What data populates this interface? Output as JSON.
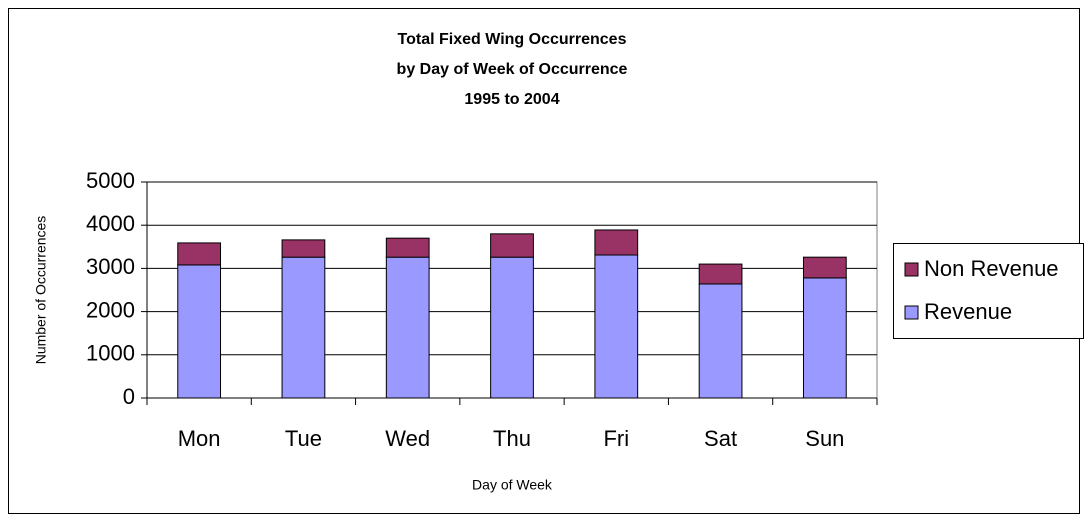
{
  "chart_data": {
    "type": "stacked_bar",
    "title": [
      "Total Fixed Wing Occurrences",
      "by Day of Week of Occurrence",
      "1995 to 2004"
    ],
    "x_label": "Day of Week",
    "y_label": "Number of Occurrences",
    "categories": [
      "Mon",
      "Tue",
      "Wed",
      "Thu",
      "Fri",
      "Sat",
      "Sun"
    ],
    "series": [
      {
        "name": "Revenue",
        "color": "#9999ff",
        "values": [
          3080,
          3260,
          3260,
          3260,
          3310,
          2640,
          2780
        ]
      },
      {
        "name": "Non Revenue",
        "color": "#993366",
        "values": [
          510,
          400,
          440,
          540,
          580,
          460,
          480
        ]
      }
    ],
    "ylim": [
      0,
      5000
    ],
    "yticks": [
      0,
      1000,
      2000,
      3000,
      4000,
      5000
    ],
    "grid": true,
    "legend": "right"
  }
}
